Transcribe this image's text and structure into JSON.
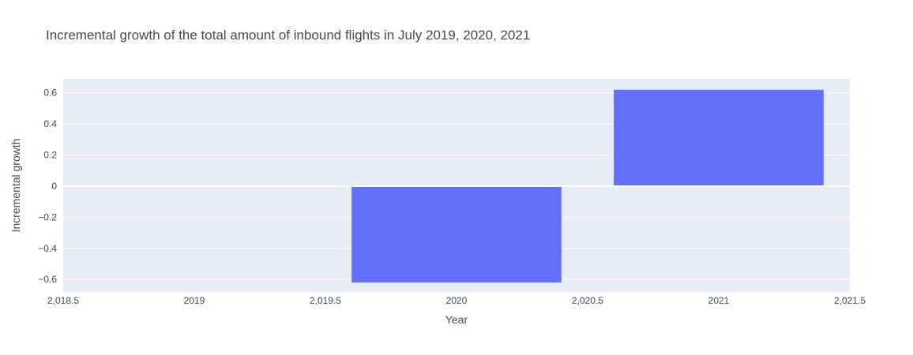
{
  "chart_data": {
    "type": "bar",
    "title": "Incremental growth of the total amount of inbound flights in July 2019, 2020, 2021",
    "xlabel": "Year",
    "ylabel": "Incremental growth",
    "x": [
      2019,
      2020,
      2021
    ],
    "values": [
      0,
      -0.62,
      0.62
    ],
    "bar_width": 0.8,
    "xlim": [
      2018.5,
      2021.5
    ],
    "ylim": [
      -0.68,
      0.69
    ],
    "x_ticks": [
      2018.5,
      2019,
      2019.5,
      2020,
      2020.5,
      2021,
      2021.5
    ],
    "x_tick_labels": [
      "2,018.5",
      "2019",
      "2,019.5",
      "2020",
      "2,020.5",
      "2021",
      "2,021.5"
    ],
    "y_ticks": [
      -0.6,
      -0.4,
      -0.2,
      0,
      0.2,
      0.4,
      0.6
    ],
    "y_tick_labels": [
      "−0.6",
      "−0.4",
      "−0.2",
      "0",
      "0.2",
      "0.4",
      "0.6"
    ],
    "grid": true,
    "legend": "none",
    "colors": {
      "bar": "#636efa",
      "plot_bg": "#e5ecf6",
      "grid": "#ffffff",
      "text": "#444a5c"
    }
  }
}
